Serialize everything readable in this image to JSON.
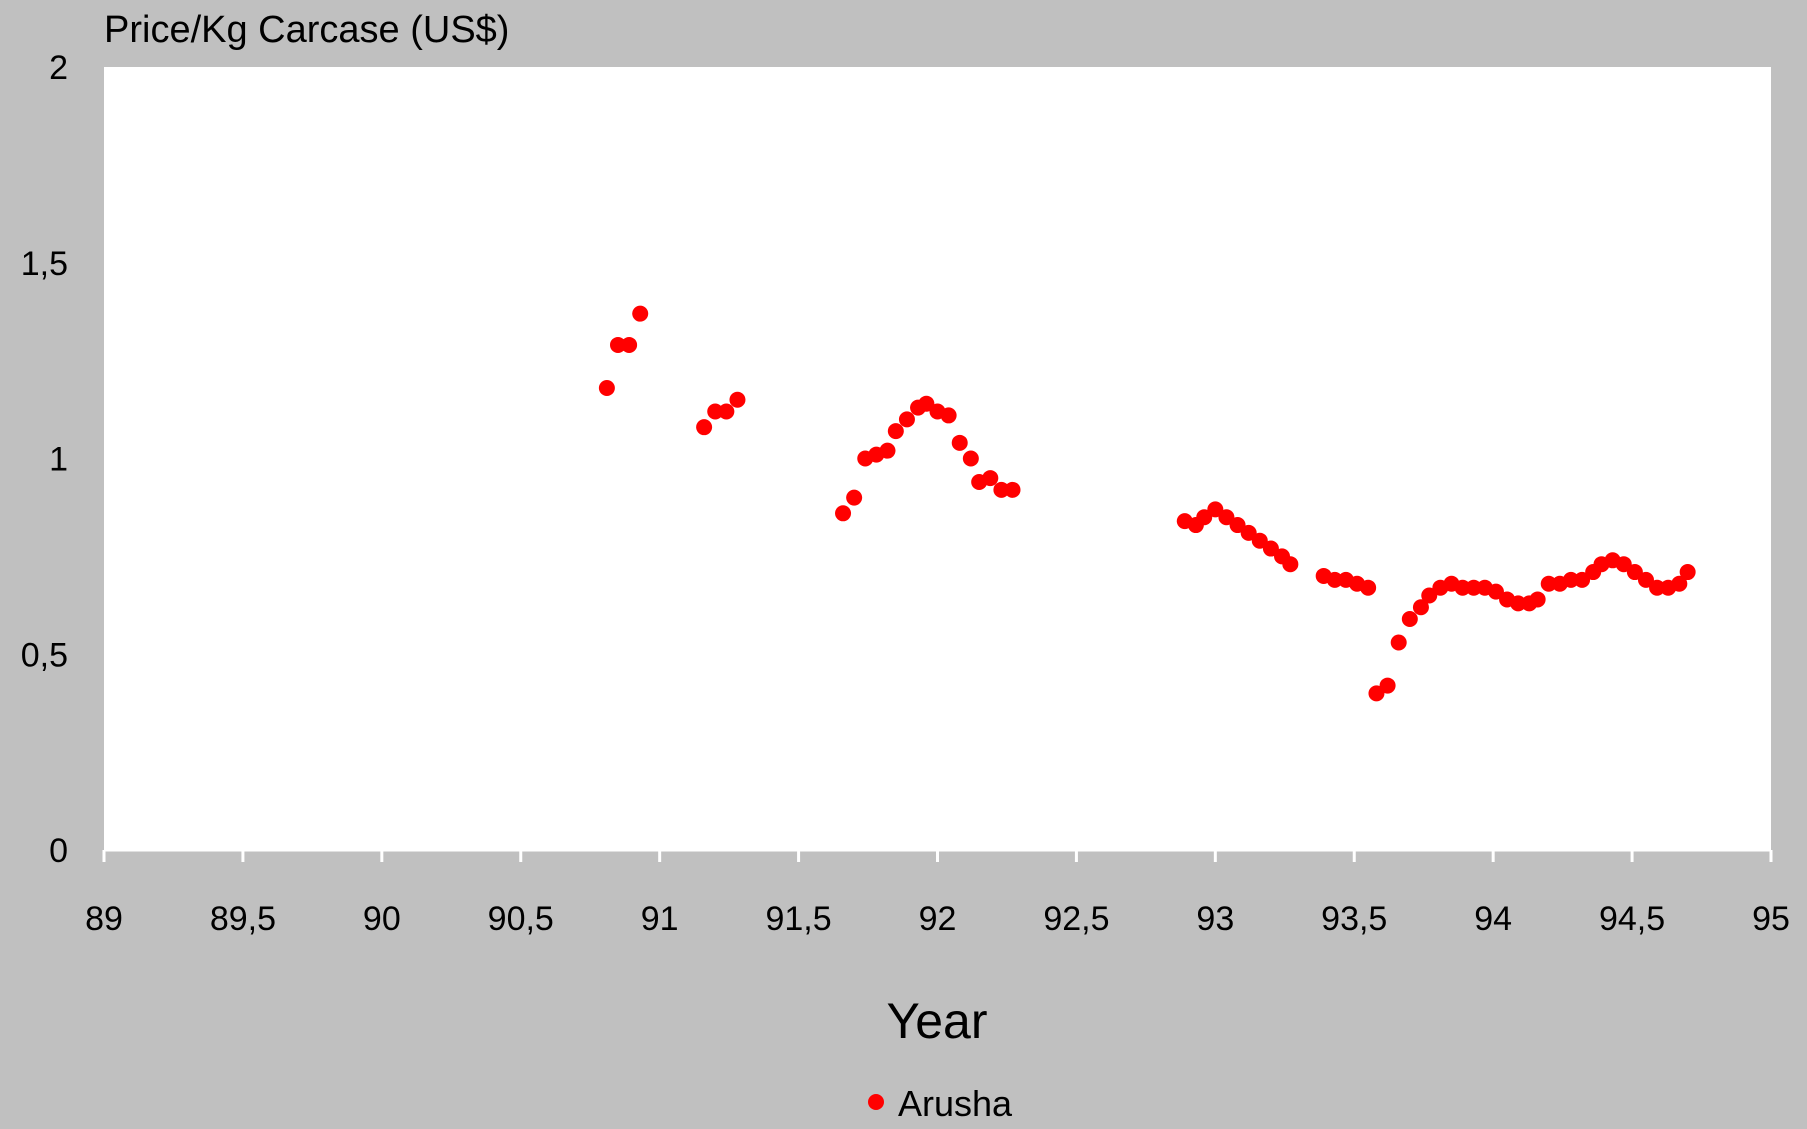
{
  "colors": {
    "background": "#c0c0c0",
    "plot_area": "#ffffff",
    "axis": "#ffffff",
    "marker": "#ff0000",
    "text": "#000000"
  },
  "chart_data": {
    "type": "scatter",
    "title": "",
    "ylabel": "Price/Kg Carcase (US$)",
    "xlabel": "Year",
    "xlim": [
      89,
      95
    ],
    "ylim": [
      0,
      2
    ],
    "x_ticks": [
      89,
      89.5,
      90,
      90.5,
      91,
      91.5,
      92,
      92.5,
      93,
      93.5,
      94,
      94.5,
      95
    ],
    "x_tick_labels": [
      "89",
      "89,5",
      "90",
      "90,5",
      "91",
      "91,5",
      "92",
      "92,5",
      "93",
      "93,5",
      "94",
      "94,5",
      "95"
    ],
    "y_ticks": [
      0,
      0.5,
      1,
      1.5,
      2
    ],
    "y_tick_labels": [
      "0",
      "0,5",
      "1",
      "1,5",
      "2"
    ],
    "grid": false,
    "legend_position": "bottom-center",
    "series": [
      {
        "name": "Arusha",
        "color": "#ff0000",
        "marker": "circle",
        "points": [
          [
            90.81,
            1.18
          ],
          [
            90.85,
            1.29
          ],
          [
            90.89,
            1.29
          ],
          [
            90.93,
            1.37
          ],
          [
            91.16,
            1.08
          ],
          [
            91.2,
            1.12
          ],
          [
            91.24,
            1.12
          ],
          [
            91.28,
            1.15
          ],
          [
            91.66,
            0.86
          ],
          [
            91.7,
            0.9
          ],
          [
            91.74,
            1.0
          ],
          [
            91.78,
            1.01
          ],
          [
            91.82,
            1.02
          ],
          [
            91.85,
            1.07
          ],
          [
            91.89,
            1.1
          ],
          [
            91.93,
            1.13
          ],
          [
            91.96,
            1.14
          ],
          [
            92.0,
            1.12
          ],
          [
            92.04,
            1.11
          ],
          [
            92.08,
            1.04
          ],
          [
            92.12,
            1.0
          ],
          [
            92.15,
            0.94
          ],
          [
            92.19,
            0.95
          ],
          [
            92.23,
            0.92
          ],
          [
            92.27,
            0.92
          ],
          [
            92.89,
            0.84
          ],
          [
            92.93,
            0.83
          ],
          [
            92.96,
            0.85
          ],
          [
            93.0,
            0.87
          ],
          [
            93.04,
            0.85
          ],
          [
            93.08,
            0.83
          ],
          [
            93.12,
            0.81
          ],
          [
            93.16,
            0.79
          ],
          [
            93.2,
            0.77
          ],
          [
            93.24,
            0.75
          ],
          [
            93.27,
            0.73
          ],
          [
            93.39,
            0.7
          ],
          [
            93.43,
            0.69
          ],
          [
            93.47,
            0.69
          ],
          [
            93.51,
            0.68
          ],
          [
            93.55,
            0.67
          ],
          [
            93.58,
            0.4
          ],
          [
            93.62,
            0.42
          ],
          [
            93.66,
            0.53
          ],
          [
            93.7,
            0.59
          ],
          [
            93.74,
            0.62
          ],
          [
            93.77,
            0.65
          ],
          [
            93.81,
            0.67
          ],
          [
            93.85,
            0.68
          ],
          [
            93.89,
            0.67
          ],
          [
            93.93,
            0.67
          ],
          [
            93.97,
            0.67
          ],
          [
            94.01,
            0.66
          ],
          [
            94.05,
            0.64
          ],
          [
            94.09,
            0.63
          ],
          [
            94.13,
            0.63
          ],
          [
            94.16,
            0.64
          ],
          [
            94.2,
            0.68
          ],
          [
            94.24,
            0.68
          ],
          [
            94.28,
            0.69
          ],
          [
            94.32,
            0.69
          ],
          [
            94.36,
            0.71
          ],
          [
            94.39,
            0.73
          ],
          [
            94.43,
            0.74
          ],
          [
            94.47,
            0.73
          ],
          [
            94.51,
            0.71
          ],
          [
            94.55,
            0.69
          ],
          [
            94.59,
            0.67
          ],
          [
            94.63,
            0.67
          ],
          [
            94.67,
            0.68
          ],
          [
            94.7,
            0.71
          ]
        ]
      }
    ]
  }
}
